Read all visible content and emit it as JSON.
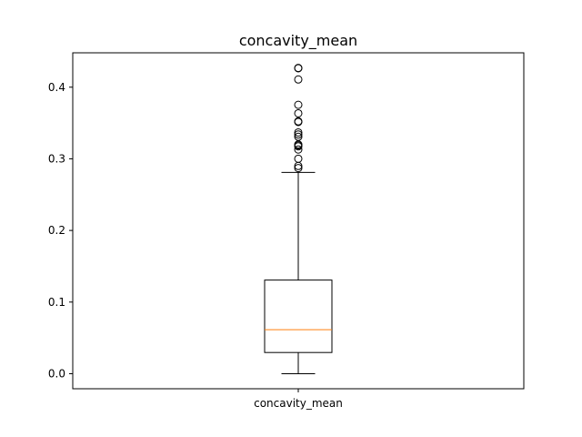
{
  "chart_data": {
    "type": "boxplot",
    "title": "concavity_mean",
    "xlabel": "",
    "ylabel": "",
    "categories": [
      "concavity_mean"
    ],
    "ylim": [
      -0.021,
      0.448
    ],
    "yticks": [
      0.0,
      0.1,
      0.2,
      0.3,
      0.4
    ],
    "ytick_labels": [
      "0.0",
      "0.1",
      "0.2",
      "0.3",
      "0.4"
    ],
    "grid": false,
    "box": {
      "whisker_low": 0.0,
      "q1": 0.0296,
      "median": 0.0615,
      "q3": 0.1307,
      "whisker_high": 0.281
    },
    "outliers": [
      0.2871,
      0.29,
      0.3001,
      0.313,
      0.3174,
      0.3189,
      0.3201,
      0.3308,
      0.3339,
      0.3368,
      0.3514,
      0.3523,
      0.3635,
      0.3754,
      0.4108,
      0.4264,
      0.4268
    ],
    "colors": {
      "box": "#000000",
      "median": "#ff7f0e",
      "axes": "#000000"
    }
  }
}
